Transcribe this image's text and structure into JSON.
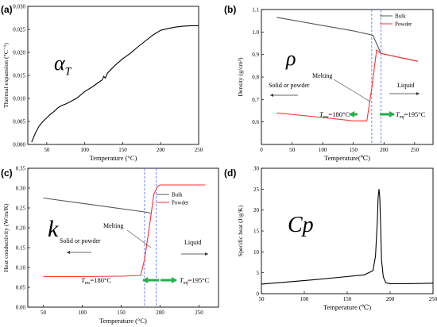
{
  "chart_data": [
    {
      "panel": "(a)",
      "type": "line",
      "symbol": "α",
      "symbol_sub": "T",
      "xlabel": "Temperature (°C)",
      "ylabel": "Thermal expansion (°C⁻¹)",
      "xlim": [
        25,
        250
      ],
      "ylim": [
        0,
        0.03
      ],
      "xticks": [
        "50",
        "100",
        "150",
        "200",
        "250"
      ],
      "yticks": [
        "0.000",
        "0.005",
        "0.010",
        "0.015",
        "0.020",
        "0.025",
        "0.030"
      ],
      "series": [
        {
          "x": [
            30,
            35,
            40,
            45,
            50,
            55,
            60,
            65,
            70,
            75,
            80,
            90,
            100,
            110,
            120,
            123,
            125,
            127,
            130,
            140,
            150,
            160,
            170,
            180,
            190,
            200,
            210,
            220,
            230,
            240,
            250
          ],
          "y": [
            0.0005,
            0.0025,
            0.004,
            0.005,
            0.0058,
            0.0066,
            0.0072,
            0.008,
            0.0085,
            0.0088,
            0.0092,
            0.0101,
            0.0115,
            0.0125,
            0.0137,
            0.014,
            0.0148,
            0.0144,
            0.0155,
            0.0172,
            0.0186,
            0.0198,
            0.0212,
            0.0225,
            0.0238,
            0.0248,
            0.0252,
            0.0255,
            0.0257,
            0.0258,
            0.0258
          ]
        }
      ]
    },
    {
      "panel": "(b)",
      "type": "line",
      "symbol": "ρ",
      "xlabel": "Temperature(℃)",
      "ylabel": "Density (g/cm³)",
      "xlim": [
        0,
        280
      ],
      "ylim": [
        0.5,
        1.1
      ],
      "xticks": [
        "0",
        "50",
        "100",
        "150",
        "200",
        "250"
      ],
      "yticks": [
        "0.6",
        "0.7",
        "0.8",
        "0.9",
        "1.0",
        "1.1"
      ],
      "vlines": [
        180,
        195
      ],
      "series": [
        {
          "name": "Bulk",
          "color": "#555555",
          "x": [
            25,
            150,
            175,
            182,
            195,
            255
          ],
          "y": [
            1.065,
            1.005,
            0.99,
            0.985,
            0.905,
            0.87
          ]
        },
        {
          "name": "Powder",
          "color": "#ff3030",
          "x": [
            25,
            100,
            150,
            172,
            180,
            188,
            195,
            255
          ],
          "y": [
            0.64,
            0.62,
            0.605,
            0.605,
            0.75,
            0.92,
            0.905,
            0.87
          ]
        }
      ],
      "annotations": {
        "melting": "Melting",
        "left_phase": "Solid or powder",
        "right_phase": "Liquid",
        "tm_left_sym": "T",
        "tm_left_sub": "ms",
        "tm_left_val": "=180°C",
        "tm_right_sym": "T",
        "tm_right_sub": "mf",
        "tm_right_val": "=195°C"
      }
    },
    {
      "panel": "(c)",
      "type": "line",
      "symbol": "k",
      "xlabel": "Temperature (°C)",
      "ylabel": "Heat conductivity (W/m/K)",
      "xlim": [
        30,
        275
      ],
      "ylim": [
        0,
        0.35
      ],
      "xticks": [
        "50",
        "100",
        "150",
        "200",
        "250"
      ],
      "yticks": [
        "0.00",
        "0.05",
        "0.10",
        "0.15",
        "0.20",
        "0.25",
        "0.30",
        "0.35"
      ],
      "vlines": [
        180,
        195
      ],
      "series": [
        {
          "name": "Bulk",
          "color": "#555555",
          "x": [
            50,
            180,
            188
          ],
          "y": [
            0.275,
            0.24,
            0.237
          ]
        },
        {
          "name": "Powder",
          "color": "#ff3030",
          "x": [
            50,
            100,
            150,
            175,
            180,
            186,
            192,
            197,
            200,
            258
          ],
          "y": [
            0.077,
            0.077,
            0.078,
            0.08,
            0.12,
            0.2,
            0.285,
            0.305,
            0.308,
            0.308
          ]
        }
      ],
      "annotations": {
        "melting": "Melting",
        "left_phase": "Solid or powder",
        "right_phase": "Liquid",
        "tm_left_sym": "T",
        "tm_left_sub": "ms",
        "tm_left_val": "=180°C",
        "tm_right_sym": "T",
        "tm_right_sub": "mf",
        "tm_right_val": "=195°C"
      }
    },
    {
      "panel": "(d)",
      "type": "line",
      "symbol": "Cp",
      "xlabel": "Temperature (℃)",
      "ylabel": "Specific heat (J/g/K)",
      "xlim": [
        50,
        250
      ],
      "ylim": [
        0,
        30
      ],
      "xticks": [
        "50",
        "100",
        "150",
        "200",
        "250"
      ],
      "yticks": [
        "0",
        "5",
        "10",
        "15",
        "20",
        "25",
        "30"
      ],
      "series": [
        {
          "x": [
            50,
            80,
            110,
            140,
            170,
            180,
            183,
            185,
            186,
            187,
            188,
            189,
            190,
            192,
            195,
            200,
            220,
            250
          ],
          "y": [
            2.3,
            2.8,
            3.3,
            3.9,
            4.5,
            5.5,
            9,
            17,
            23,
            25,
            23,
            16,
            8,
            4,
            2.6,
            2.4,
            2.4,
            2.5
          ]
        }
      ]
    }
  ]
}
